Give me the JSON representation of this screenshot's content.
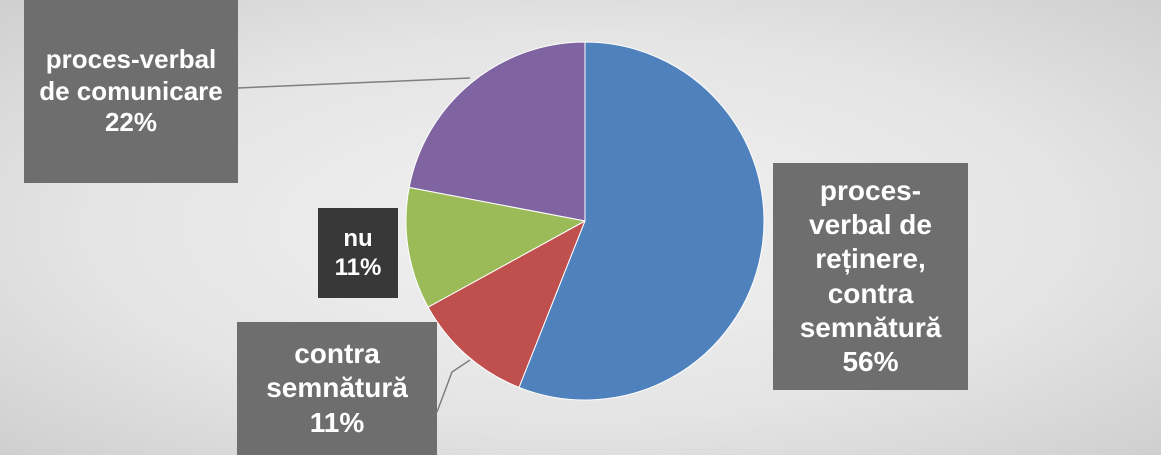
{
  "chart_data": {
    "type": "pie",
    "categories": [
      "proces-verbal de reținere, contra semnătură",
      "contra semnătură",
      "nu",
      "proces-verbal de comunicare"
    ],
    "values": [
      56,
      11,
      11,
      22
    ],
    "value_labels": [
      "56%",
      "11%",
      "11%",
      "22%"
    ],
    "colors": [
      "#4f81bd",
      "#c0504d",
      "#9bbb59",
      "#8064a2"
    ]
  }
}
